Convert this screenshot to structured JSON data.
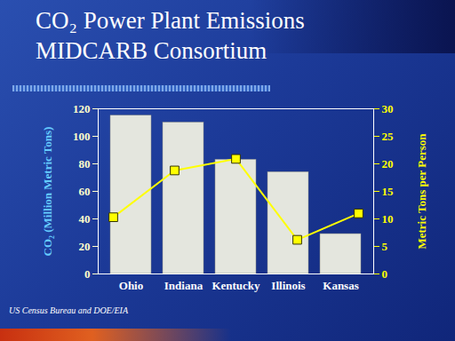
{
  "chart_data": {
    "type": "bar",
    "title": "CO₂ Power Plant Emissions",
    "subtitle": "MIDCARB Consortium",
    "caption": "US Census Bureau and DOE/EIA",
    "categories": [
      "Ohio",
      "Indiana",
      "Kentucky",
      "Illinois",
      "Kansas"
    ],
    "ylabel": "CO₂ (Million Metric Tons)",
    "y2label": "Metric Tons per Person",
    "series": [
      {
        "type": "bar",
        "color": "#e4e6de",
        "values": [
          115,
          110,
          83,
          74,
          29
        ]
      },
      {
        "type": "line",
        "axis": "y2",
        "color": "#ffff00",
        "marker": "square",
        "line_style": "solid",
        "values": [
          10.3,
          18.8,
          20.9,
          6.2,
          11
        ]
      }
    ],
    "ylim": [
      0,
      120
    ],
    "yticks": [
      0,
      20,
      40,
      60,
      80,
      100,
      120
    ],
    "y2lim": [
      0,
      30
    ],
    "y2ticks": [
      0,
      5,
      10,
      15,
      20,
      25,
      30
    ],
    "grid": false
  }
}
